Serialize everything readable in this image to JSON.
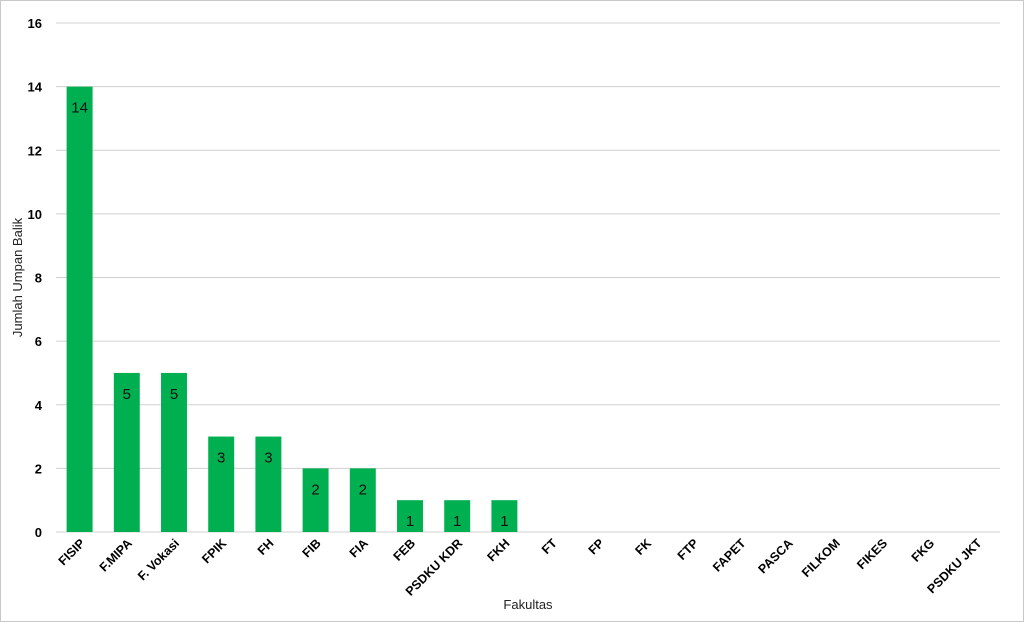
{
  "chart_data": {
    "type": "bar",
    "xlabel": "Fakultas",
    "ylabel": "Jumlah Umpan Balik",
    "ylim": [
      0,
      16
    ],
    "yticks": [
      0,
      2,
      4,
      6,
      8,
      10,
      12,
      14,
      16
    ],
    "grid": true,
    "legend": "none",
    "bar_color": "#00b050",
    "categories": [
      "FISIP",
      "F.MIPA",
      "F. Vokasi",
      "FPIK",
      "FH",
      "FIB",
      "FIA",
      "FEB",
      "PSDKU KDR",
      "FKH",
      "FT",
      "FP",
      "FK",
      "FTP",
      "FAPET",
      "PASCA",
      "FILKOM",
      "FIKES",
      "FKG",
      "PSDKU JKT"
    ],
    "values": [
      14,
      5,
      5,
      3,
      3,
      2,
      2,
      1,
      1,
      1,
      0,
      0,
      0,
      0,
      0,
      0,
      0,
      0,
      0,
      0
    ],
    "data_labels": [
      "14",
      "5",
      "5",
      "3",
      "3",
      "2",
      "2",
      "1",
      "1",
      "1",
      "",
      "",
      "",
      "",
      "",
      "",
      "",
      "",
      "",
      ""
    ]
  }
}
